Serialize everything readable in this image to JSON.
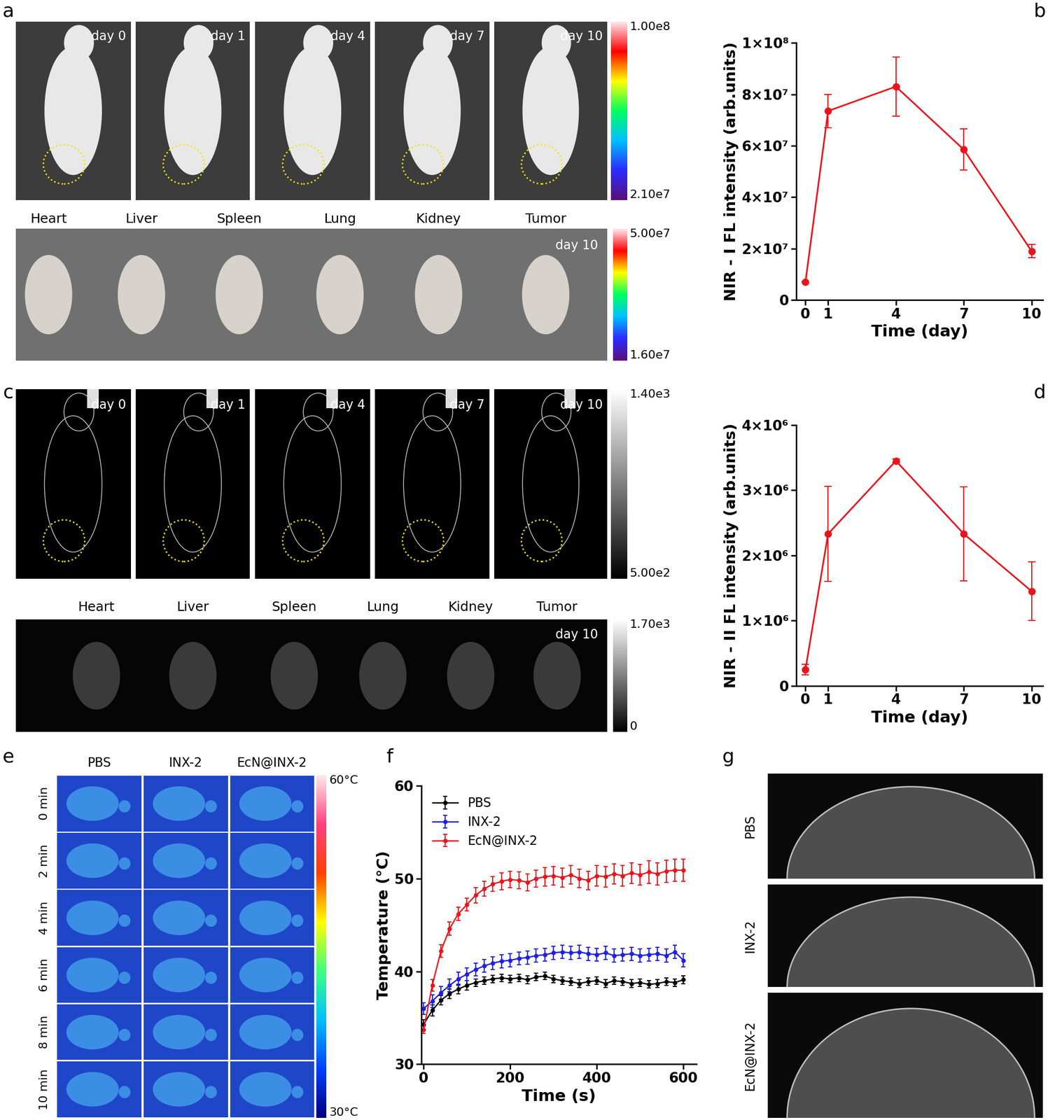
{
  "panel_labels": [
    "a",
    "b",
    "c",
    "d",
    "e",
    "f",
    "g"
  ],
  "panel_a": {
    "mouse_images": {
      "labels": [
        "day 0",
        "day 1",
        "day 4",
        "day 7",
        "day 10"
      ],
      "colorbar": {
        "range": [
          21000000,
          100000000
        ],
        "ticks": [
          {
            "value": 21000000,
            "label": "2.10e7"
          },
          {
            "value": 100000000,
            "label": "1.00e8"
          }
        ]
      }
    },
    "organ_image": {
      "organs": [
        "Heart",
        "Liver",
        "Spleen",
        "Lung",
        "Kidney",
        "Tumor"
      ],
      "label": "day 10",
      "colorbar": {
        "range": [
          16000000,
          50000000
        ],
        "ticks": [
          {
            "value": 16000000,
            "label": "1.60e7"
          },
          {
            "value": 50000000,
            "label": "5.00e7"
          }
        ]
      }
    }
  },
  "panel_c": {
    "mouse_images": {
      "labels": [
        "day 0",
        "day 1",
        "day 4",
        "day 7",
        "day 10"
      ],
      "colorbar": {
        "range": [
          500,
          1400
        ],
        "ticks": [
          {
            "value": 500,
            "label": "5.00e2"
          },
          {
            "value": 1400,
            "label": "1.40e3"
          }
        ]
      }
    },
    "organ_image": {
      "organs": [
        "Heart",
        "Liver",
        "Spleen",
        "Lung",
        "Kidney",
        "Tumor"
      ],
      "label": "day 10",
      "colorbar": {
        "range": [
          0,
          1700
        ],
        "ticks": [
          0,
          {
            "value": 1700,
            "label": "1.70e3"
          }
        ]
      }
    }
  },
  "panel_e": {
    "columns": [
      "PBS",
      "INX-2",
      "EcN@INX-2"
    ],
    "rows": [
      "0 min",
      "2 min",
      "4 min",
      "6 min",
      "8 min",
      "10 min"
    ],
    "colorbar": {
      "range": [
        30,
        60
      ],
      "ticks": [
        {
          "value": 30,
          "label": "30°C"
        },
        {
          "value": 60,
          "label": "60°C"
        }
      ]
    }
  },
  "panel_g": {
    "rows": [
      "PBS",
      "INX-2",
      "EcN@INX-2"
    ]
  },
  "chart_data": [
    {
      "type": "line",
      "x_label": "Time (day)",
      "y_label": "NIR - I FL intensity (arb.units)",
      "x": [
        0,
        1,
        4,
        7,
        10
      ],
      "values": [
        7000000,
        73500000,
        83000000,
        58500000,
        19000000
      ],
      "errors": [
        300000,
        6500000,
        11500000,
        8000000,
        2500000
      ],
      "color": "#e8141c",
      "marker": "circle",
      "xlim": [
        -0.4,
        10.5
      ],
      "xticks": [
        0,
        1,
        4,
        7,
        10
      ],
      "ylim": [
        0,
        100000000
      ],
      "yticks": [
        0,
        {
          "value": 20000000,
          "label": "2×10⁷"
        },
        {
          "value": 40000000,
          "label": "4×10⁷"
        },
        {
          "value": 60000000,
          "label": "6×10⁷"
        },
        {
          "value": 80000000,
          "label": "8×10⁷"
        },
        {
          "value": 100000000,
          "label": "1×10⁸"
        }
      ]
    },
    {
      "type": "line",
      "x_label": "Time (day)",
      "y_label": "NIR - II FL intensity (arb.units)",
      "x": [
        0,
        1,
        4,
        7,
        10
      ],
      "values": [
        250000,
        2330000,
        3450000,
        2330000,
        1450000
      ],
      "errors": [
        80000,
        730000,
        30000,
        720000,
        450000
      ],
      "color": "#e8141c",
      "marker": "circle",
      "xlim": [
        -0.4,
        10.5
      ],
      "xticks": [
        0,
        1,
        4,
        7,
        10
      ],
      "ylim": [
        0,
        4000000
      ],
      "yticks": [
        0,
        {
          "value": 1000000,
          "label": "1×10⁶"
        },
        {
          "value": 2000000,
          "label": "2×10⁶"
        },
        {
          "value": 3000000,
          "label": "3×10⁶"
        },
        {
          "value": 4000000,
          "label": "4×10⁶"
        }
      ]
    },
    {
      "type": "line",
      "x_label": "Time (s)",
      "y_label": "Temperature (°C)",
      "x": [
        0,
        20,
        40,
        60,
        80,
        100,
        120,
        140,
        160,
        180,
        200,
        220,
        240,
        260,
        280,
        300,
        320,
        340,
        360,
        380,
        400,
        420,
        440,
        460,
        480,
        500,
        520,
        540,
        560,
        580,
        600
      ],
      "marker": "circle",
      "legend": "upper left",
      "xlim": [
        -5,
        630
      ],
      "xticks": [
        0,
        200,
        400,
        600
      ],
      "ylim": [
        30,
        60
      ],
      "yticks": [
        30,
        40,
        50,
        60
      ],
      "series": [
        {
          "name": "PBS",
          "color": "#000000",
          "values": [
            34.3,
            35.8,
            36.9,
            37.6,
            38.1,
            38.5,
            38.8,
            39.0,
            39.2,
            39.3,
            39.2,
            39.3,
            39.1,
            39.4,
            39.5,
            39.2,
            39.0,
            38.9,
            38.7,
            38.9,
            39.0,
            38.7,
            39.0,
            38.9,
            38.7,
            38.8,
            38.6,
            38.7,
            38.9,
            38.8,
            39.1
          ],
          "errors": [
            0.5,
            0.6,
            0.5,
            0.5,
            0.5,
            0.5,
            0.4,
            0.4,
            0.4,
            0.4,
            0.4,
            0.4,
            0.4,
            0.4,
            0.4,
            0.4,
            0.4,
            0.4,
            0.4,
            0.4,
            0.4,
            0.4,
            0.4,
            0.4,
            0.4,
            0.4,
            0.4,
            0.4,
            0.4,
            0.4,
            0.4
          ]
        },
        {
          "name": "INX-2",
          "color": "#1f1fe6",
          "values": [
            36.0,
            36.8,
            37.7,
            38.5,
            39.2,
            39.7,
            40.2,
            40.6,
            40.9,
            41.1,
            41.2,
            41.4,
            41.5,
            41.7,
            41.8,
            42.0,
            42.1,
            42.0,
            42.1,
            41.9,
            41.8,
            42.0,
            41.7,
            41.8,
            41.9,
            41.7,
            41.8,
            41.9,
            41.7,
            42.1,
            41.2
          ],
          "errors": [
            0.6,
            0.7,
            0.7,
            0.7,
            0.7,
            0.7,
            0.7,
            0.7,
            0.7,
            0.7,
            0.7,
            0.7,
            0.7,
            0.7,
            0.7,
            0.7,
            0.7,
            0.7,
            0.7,
            0.7,
            0.7,
            0.7,
            0.7,
            0.7,
            0.7,
            0.7,
            0.7,
            0.7,
            0.7,
            0.7,
            0.7
          ]
        },
        {
          "name": "EcN@INX-2",
          "color": "#e8141c",
          "values": [
            33.7,
            38.5,
            42.2,
            44.6,
            46.2,
            47.2,
            48.2,
            48.9,
            49.4,
            49.7,
            49.9,
            49.8,
            49.6,
            50.0,
            50.2,
            50.3,
            50.1,
            50.4,
            50.0,
            49.8,
            50.3,
            50.2,
            50.5,
            50.3,
            50.6,
            50.4,
            50.7,
            50.5,
            50.8,
            50.9,
            50.9
          ],
          "errors": [
            0.4,
            0.6,
            0.7,
            0.7,
            0.7,
            0.7,
            0.8,
            0.8,
            0.8,
            0.9,
            0.9,
            0.9,
            0.9,
            0.9,
            1.0,
            1.0,
            1.0,
            1.0,
            1.0,
            1.0,
            1.1,
            1.1,
            1.1,
            1.1,
            1.1,
            1.1,
            1.2,
            1.2,
            1.2,
            1.2,
            1.2
          ]
        }
      ]
    }
  ]
}
